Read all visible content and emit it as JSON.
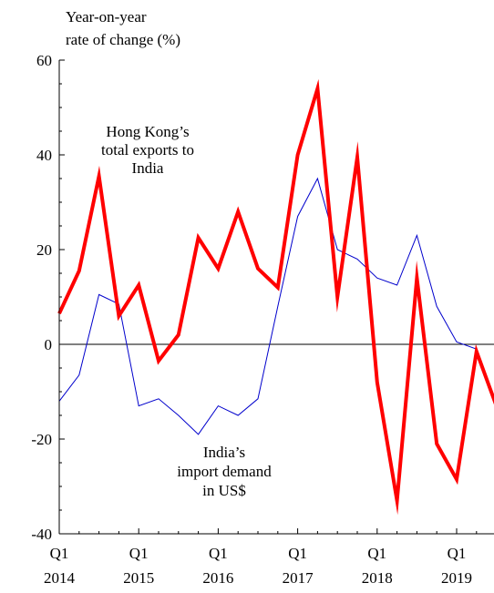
{
  "chart_data": {
    "type": "line",
    "ylabel_lines": [
      "Year-on-year",
      "rate of change (%)"
    ],
    "ylim": [
      -40,
      60
    ],
    "yticks": [
      60,
      40,
      20,
      0,
      -20,
      -40
    ],
    "x_tick_labels": [
      {
        "quarter": "Q1",
        "year": "2014"
      },
      {
        "quarter": "Q1",
        "year": "2015"
      },
      {
        "quarter": "Q1",
        "year": "2016"
      },
      {
        "quarter": "Q1",
        "year": "2017"
      },
      {
        "quarter": "Q1",
        "year": "2018"
      },
      {
        "quarter": "Q1",
        "year": "2019"
      }
    ],
    "x": [
      "2014 Q1",
      "2014 Q2",
      "2014 Q3",
      "2014 Q4",
      "2015 Q1",
      "2015 Q2",
      "2015 Q3",
      "2015 Q4",
      "2016 Q1",
      "2016 Q2",
      "2016 Q3",
      "2016 Q4",
      "2017 Q1",
      "2017 Q2",
      "2017 Q3",
      "2017 Q4",
      "2018 Q1",
      "2018 Q2",
      "2018 Q3",
      "2018 Q4",
      "2019 Q1",
      "2019 Q2",
      "2019 Q3"
    ],
    "series": [
      {
        "label_lines": [
          "Hong Kong’s",
          "total exports to",
          "India"
        ],
        "color": "#ff0000",
        "values": [
          6.5,
          15.5,
          35.5,
          6,
          12.5,
          -3.5,
          2,
          22.5,
          16,
          28,
          16,
          12,
          40,
          54,
          10,
          39.5,
          -8,
          -33,
          14,
          -21,
          -28.5,
          -1.5,
          -13
        ]
      },
      {
        "label_lines": [
          "India’s",
          "import demand",
          "in US$"
        ],
        "color": "#0000cc",
        "values": [
          -12,
          -6.5,
          10.5,
          8.5,
          -13,
          -11.5,
          -15,
          -19,
          -13,
          -15,
          -11.5,
          8,
          27,
          35,
          20,
          18,
          14,
          12.5,
          23,
          8,
          0.5,
          -1,
          null
        ]
      }
    ]
  }
}
